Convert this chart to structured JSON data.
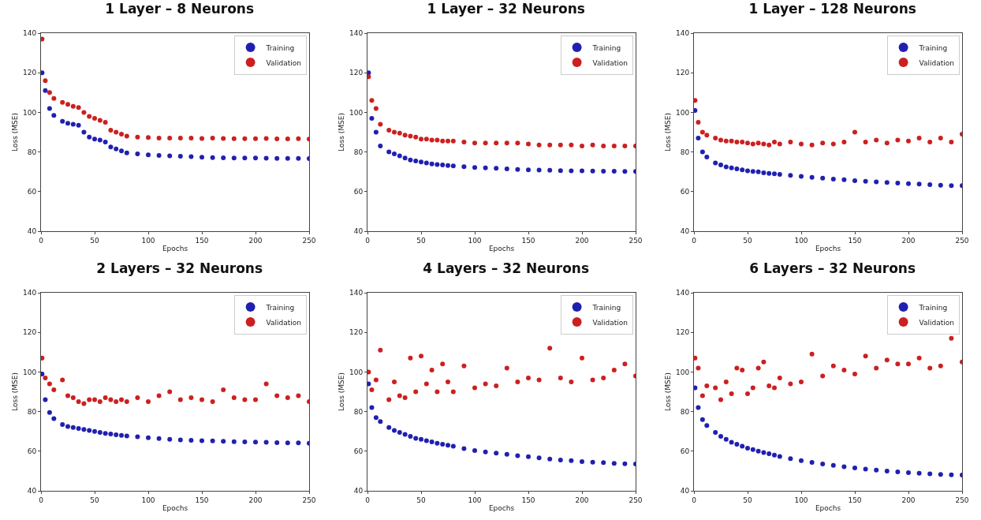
{
  "chart_data": [
    {
      "type": "scatter",
      "title": "1 Layer – 8 Neurons",
      "xlabel": "Epochs",
      "ylabel": "Loss (MSE)",
      "xlim": [
        0,
        250
      ],
      "xticks": [
        0,
        50,
        100,
        150,
        200,
        250
      ],
      "ylim": [
        40,
        140
      ],
      "yticks": [
        40,
        60,
        80,
        100,
        120,
        140
      ],
      "grid": false,
      "legend": "top right",
      "marker": "circle",
      "x": [
        1,
        4,
        8,
        12,
        20,
        25,
        30,
        35,
        40,
        45,
        50,
        55,
        60,
        65,
        70,
        75,
        80,
        90,
        100,
        110,
        120,
        130,
        140,
        150,
        160,
        170,
        180,
        190,
        200,
        210,
        220,
        230,
        240,
        250
      ],
      "series": [
        {
          "name": "Training",
          "color": "#2020b0",
          "values": [
            120,
            111,
            102,
            98.5,
            95.5,
            94.5,
            94,
            93.5,
            90,
            87.5,
            86.5,
            86,
            85,
            82.5,
            81.5,
            80.5,
            79.5,
            79,
            78.5,
            78.2,
            78,
            77.8,
            77.6,
            77.4,
            77.2,
            77.1,
            77,
            77,
            77,
            76.9,
            76.8,
            76.8,
            76.8,
            76.7
          ]
        },
        {
          "name": "Validation",
          "color": "#cc2020",
          "values": [
            137,
            116,
            110,
            107,
            105,
            104,
            103,
            102.5,
            100,
            98,
            97,
            96,
            95,
            91,
            90,
            89,
            88,
            87.5,
            87.3,
            87,
            87,
            87,
            87,
            86.8,
            87,
            86.8,
            86.7,
            86.7,
            86.7,
            86.8,
            86.6,
            86.6,
            86.7,
            86.5
          ]
        }
      ]
    },
    {
      "type": "scatter",
      "title": "1 Layer – 32 Neurons",
      "xlabel": "Epochs",
      "ylabel": "Loss (MSE)",
      "xlim": [
        0,
        250
      ],
      "xticks": [
        0,
        50,
        100,
        150,
        200,
        250
      ],
      "ylim": [
        40,
        140
      ],
      "yticks": [
        40,
        60,
        80,
        100,
        120,
        140
      ],
      "grid": false,
      "legend": "top right",
      "marker": "circle",
      "x": [
        1,
        4,
        8,
        12,
        20,
        25,
        30,
        35,
        40,
        45,
        50,
        55,
        60,
        65,
        70,
        75,
        80,
        90,
        100,
        110,
        120,
        130,
        140,
        150,
        160,
        170,
        180,
        190,
        200,
        210,
        220,
        230,
        240,
        250
      ],
      "series": [
        {
          "name": "Training",
          "color": "#2020b0",
          "values": [
            120,
            97,
            90,
            83,
            80,
            79,
            78,
            77,
            76,
            75.5,
            75,
            74.5,
            74,
            73.7,
            73.5,
            73.2,
            73,
            72.6,
            72.2,
            72,
            71.8,
            71.5,
            71.2,
            71,
            70.9,
            70.8,
            70.6,
            70.5,
            70.5,
            70.4,
            70.3,
            70.3,
            70.2,
            70.2
          ]
        },
        {
          "name": "Validation",
          "color": "#cc2020",
          "values": [
            118,
            106,
            102,
            94,
            91,
            90,
            89.5,
            88.5,
            88,
            87.5,
            86.5,
            86.5,
            86,
            86,
            85.5,
            85.5,
            85.5,
            85,
            84.5,
            84.5,
            84.5,
            84.5,
            84.5,
            84,
            83.5,
            83.5,
            83.5,
            83.5,
            83,
            83.5,
            83,
            83,
            83,
            83
          ]
        }
      ]
    },
    {
      "type": "scatter",
      "title": "1 Layer – 128 Neurons",
      "xlabel": "Epochs",
      "ylabel": "Loss (MSE)",
      "xlim": [
        0,
        250
      ],
      "xticks": [
        0,
        50,
        100,
        150,
        200,
        250
      ],
      "ylim": [
        40,
        140
      ],
      "yticks": [
        40,
        60,
        80,
        100,
        120,
        140
      ],
      "grid": false,
      "legend": "top right",
      "marker": "circle",
      "x": [
        1,
        4,
        8,
        12,
        20,
        25,
        30,
        35,
        40,
        45,
        50,
        55,
        60,
        65,
        70,
        75,
        80,
        90,
        100,
        110,
        120,
        130,
        140,
        150,
        160,
        170,
        180,
        190,
        200,
        210,
        220,
        230,
        240,
        250
      ],
      "series": [
        {
          "name": "Training",
          "color": "#2020b0",
          "values": [
            101,
            87,
            80,
            77.5,
            74.5,
            73.5,
            72.5,
            72,
            71.5,
            71,
            70.5,
            70.2,
            70,
            69.5,
            69.2,
            69,
            68.7,
            68.2,
            67.7,
            67.2,
            66.8,
            66.3,
            66,
            65.5,
            65.2,
            64.9,
            64.6,
            64.3,
            64,
            63.8,
            63.5,
            63.2,
            63,
            63
          ]
        },
        {
          "name": "Validation",
          "color": "#cc2020",
          "values": [
            106,
            95,
            90,
            88.5,
            87,
            86,
            85.5,
            85.5,
            85,
            85,
            84.5,
            84,
            84.5,
            84,
            83.5,
            85,
            84,
            85,
            84,
            83.5,
            84.5,
            84,
            85,
            90,
            85,
            86,
            84.5,
            86,
            85.5,
            87,
            85,
            87,
            85,
            89
          ]
        }
      ]
    },
    {
      "type": "scatter",
      "title": "2 Layers – 32 Neurons",
      "xlabel": "Epochs",
      "ylabel": "Loss (MSE)",
      "xlim": [
        0,
        250
      ],
      "xticks": [
        0,
        50,
        100,
        150,
        200,
        250
      ],
      "ylim": [
        40,
        140
      ],
      "yticks": [
        40,
        60,
        80,
        100,
        120,
        140
      ],
      "grid": false,
      "legend": "top right",
      "marker": "circle",
      "x": [
        1,
        4,
        8,
        12,
        20,
        25,
        30,
        35,
        40,
        45,
        50,
        55,
        60,
        65,
        70,
        75,
        80,
        90,
        100,
        110,
        120,
        130,
        140,
        150,
        160,
        170,
        180,
        190,
        200,
        210,
        220,
        230,
        240,
        250
      ],
      "series": [
        {
          "name": "Training",
          "color": "#2020b0",
          "values": [
            99,
            86,
            79.5,
            76.5,
            73.5,
            72.5,
            72,
            71.5,
            71,
            70.5,
            70,
            69.5,
            69,
            68.7,
            68.3,
            68,
            67.7,
            67.3,
            66.8,
            66.4,
            66,
            65.7,
            65.5,
            65.3,
            65.2,
            65,
            64.8,
            64.7,
            64.6,
            64.5,
            64.3,
            64.2,
            64.2,
            64
          ]
        },
        {
          "name": "Validation",
          "color": "#cc2020",
          "values": [
            107,
            97,
            94,
            91,
            96,
            88,
            87,
            85,
            84,
            86,
            86,
            85,
            87,
            86,
            85,
            86,
            85,
            87,
            85,
            88,
            90,
            86,
            87,
            86,
            85,
            91,
            87,
            86,
            86,
            94,
            88,
            87,
            88,
            85
          ]
        }
      ]
    },
    {
      "type": "scatter",
      "title": "4 Layers – 32 Neurons",
      "xlabel": "Epochs",
      "ylabel": "Loss (MSE)",
      "xlim": [
        0,
        250
      ],
      "xticks": [
        0,
        50,
        100,
        150,
        200,
        250
      ],
      "ylim": [
        40,
        140
      ],
      "yticks": [
        40,
        60,
        80,
        100,
        120,
        140
      ],
      "grid": false,
      "legend": "top right",
      "marker": "circle",
      "x": [
        1,
        4,
        8,
        12,
        20,
        25,
        30,
        35,
        40,
        45,
        50,
        55,
        60,
        65,
        70,
        75,
        80,
        90,
        100,
        110,
        120,
        130,
        140,
        150,
        160,
        170,
        180,
        190,
        200,
        210,
        220,
        230,
        240,
        250
      ],
      "series": [
        {
          "name": "Training",
          "color": "#2020b0",
          "values": [
            94,
            82,
            77,
            75,
            72,
            70.5,
            69.5,
            68.5,
            67.5,
            66.5,
            66,
            65.3,
            64.7,
            64,
            63.5,
            63,
            62.5,
            61.3,
            60.3,
            59.6,
            59,
            58.4,
            57.7,
            57.2,
            56.6,
            56,
            55.5,
            55.2,
            54.7,
            54.4,
            54.2,
            53.8,
            53.6,
            53.5
          ]
        },
        {
          "name": "Validation",
          "color": "#cc2020",
          "values": [
            100,
            91,
            96,
            111,
            86,
            95,
            88,
            87,
            107,
            90,
            108,
            94,
            101,
            90,
            104,
            95,
            90,
            103,
            92,
            94,
            93,
            102,
            95,
            97,
            96,
            112,
            97,
            95,
            107,
            96,
            97,
            101,
            104,
            98
          ]
        }
      ]
    },
    {
      "type": "scatter",
      "title": "6 Layers – 32 Neurons",
      "xlabel": "Epochs",
      "ylabel": "Loss (MSE)",
      "xlim": [
        0,
        250
      ],
      "xticks": [
        0,
        50,
        100,
        150,
        200,
        250
      ],
      "ylim": [
        40,
        140
      ],
      "yticks": [
        40,
        60,
        80,
        100,
        120,
        140
      ],
      "grid": false,
      "legend": "top right",
      "marker": "circle",
      "x": [
        1,
        4,
        8,
        12,
        20,
        25,
        30,
        35,
        40,
        45,
        50,
        55,
        60,
        65,
        70,
        75,
        80,
        90,
        100,
        110,
        120,
        130,
        140,
        150,
        160,
        170,
        180,
        190,
        200,
        210,
        220,
        230,
        240,
        250
      ],
      "series": [
        {
          "name": "Training",
          "color": "#2020b0",
          "values": [
            92,
            82,
            76,
            73,
            69.5,
            67.5,
            66,
            64.5,
            63.5,
            62.5,
            61.5,
            60.8,
            60,
            59.3,
            58.7,
            58,
            57.3,
            56.2,
            55.2,
            54.3,
            53.5,
            52.8,
            52.2,
            51.6,
            51,
            50.5,
            50,
            49.6,
            49.2,
            48.9,
            48.6,
            48.3,
            48.1,
            48
          ]
        },
        {
          "name": "Validation",
          "color": "#cc2020",
          "values": [
            107,
            102,
            88,
            93,
            92,
            86,
            95,
            89,
            102,
            101,
            89,
            92,
            102,
            105,
            93,
            92,
            97,
            94,
            95,
            109,
            98,
            103,
            101,
            99,
            108,
            102,
            106,
            104,
            104,
            107,
            102,
            103,
            117,
            105
          ]
        }
      ]
    }
  ]
}
